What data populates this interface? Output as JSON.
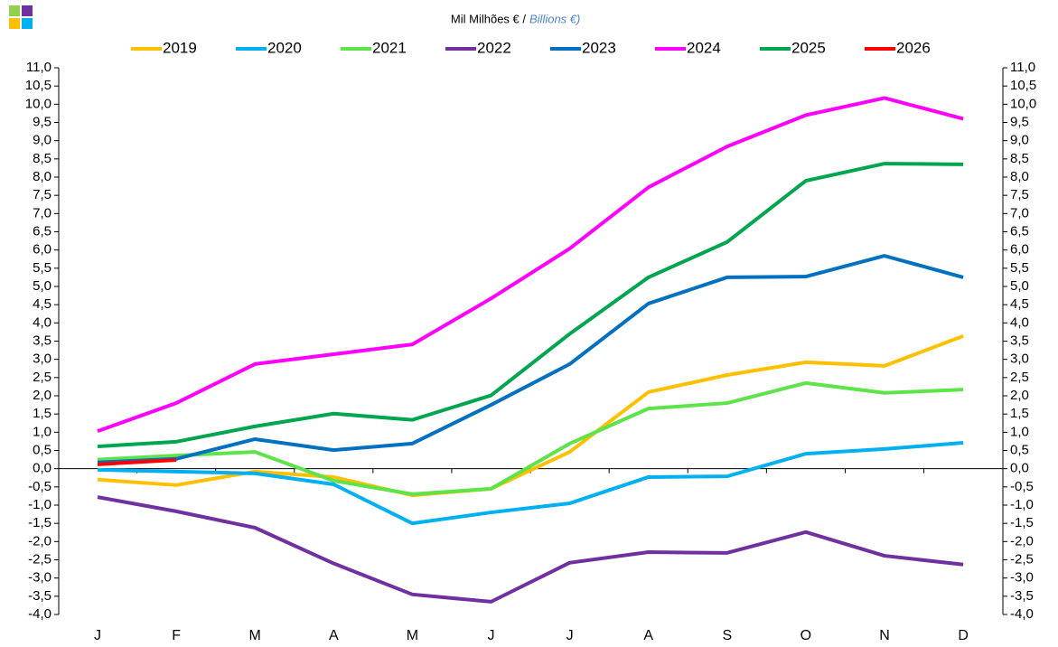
{
  "chart_data": {
    "type": "line",
    "title": "Mil Milhões € /",
    "subtitle": "Billions €)",
    "categories": [
      "J",
      "F",
      "M",
      "A",
      "M",
      "J",
      "J",
      "A",
      "S",
      "O",
      "N",
      "D"
    ],
    "ylim": [
      -4,
      11
    ],
    "yticks": [
      {
        "value": -4,
        "label": "-4,0"
      },
      {
        "value": -3.5,
        "label": "-3,5"
      },
      {
        "value": -3,
        "label": "-3,0"
      },
      {
        "value": -2.5,
        "label": "-2,5"
      },
      {
        "value": -2,
        "label": "-2,0"
      },
      {
        "value": -1.5,
        "label": "-1,5"
      },
      {
        "value": -1,
        "label": "-1,0"
      },
      {
        "value": -0.5,
        "label": "-0,5"
      },
      {
        "value": 0,
        "label": "0,0"
      },
      {
        "value": 0.5,
        "label": "0,5"
      },
      {
        "value": 1,
        "label": "1,0"
      },
      {
        "value": 1.5,
        "label": "1,5"
      },
      {
        "value": 2,
        "label": "2,0"
      },
      {
        "value": 2.5,
        "label": "2,5"
      },
      {
        "value": 3,
        "label": "3,0"
      },
      {
        "value": 3.5,
        "label": "3,5"
      },
      {
        "value": 4,
        "label": "4,0"
      },
      {
        "value": 4.5,
        "label": "4,5"
      },
      {
        "value": 5,
        "label": "5,0"
      },
      {
        "value": 5.5,
        "label": "5,5"
      },
      {
        "value": 6,
        "label": "6,0"
      },
      {
        "value": 6.5,
        "label": "6,5"
      },
      {
        "value": 7,
        "label": "7,0"
      },
      {
        "value": 7.5,
        "label": "7,5"
      },
      {
        "value": 8,
        "label": "8,0"
      },
      {
        "value": 8.5,
        "label": "8,5"
      },
      {
        "value": 9,
        "label": "9,0"
      },
      {
        "value": 9.5,
        "label": "9,5"
      },
      {
        "value": 10,
        "label": "10,0"
      },
      {
        "value": 10.5,
        "label": "10,5"
      },
      {
        "value": 11,
        "label": "11,0"
      }
    ],
    "grid": false,
    "legend": "top",
    "series": [
      {
        "name": "2019",
        "color": "#ffc000",
        "values": [
          -0.3,
          -0.45,
          -0.08,
          -0.23,
          -0.73,
          -0.55,
          0.46,
          2.1,
          2.57,
          2.92,
          2.82,
          3.64
        ]
      },
      {
        "name": "2020",
        "color": "#00b0f0",
        "values": [
          -0.03,
          -0.08,
          -0.13,
          -0.43,
          -1.5,
          -1.2,
          -0.95,
          -0.23,
          -0.21,
          0.41,
          0.54,
          0.71
        ]
      },
      {
        "name": "2021",
        "color": "#5ee34a",
        "values": [
          0.25,
          0.36,
          0.46,
          -0.33,
          -0.7,
          -0.55,
          0.69,
          1.65,
          1.8,
          2.35,
          2.08,
          2.17
        ]
      },
      {
        "name": "2022",
        "color": "#7030a0",
        "values": [
          -0.78,
          -1.17,
          -1.62,
          -2.6,
          -3.45,
          -3.65,
          -2.58,
          -2.29,
          -2.31,
          -1.74,
          -2.39,
          -2.63
        ]
      },
      {
        "name": "2023",
        "color": "#0070c0",
        "values": [
          0.17,
          0.27,
          0.81,
          0.51,
          0.69,
          1.75,
          2.87,
          4.53,
          5.25,
          5.27,
          5.84,
          5.25
        ]
      },
      {
        "name": "2024",
        "color": "#ff00ff",
        "values": [
          1.03,
          1.8,
          2.87,
          3.14,
          3.41,
          4.67,
          6.04,
          7.72,
          8.84,
          9.7,
          10.17,
          9.6
        ]
      },
      {
        "name": "2025",
        "color": "#00a550",
        "values": [
          0.61,
          0.74,
          1.16,
          1.51,
          1.34,
          2.01,
          3.7,
          5.25,
          6.22,
          7.9,
          8.37,
          8.35
        ]
      },
      {
        "name": "2026",
        "color": "#ff0000",
        "values": [
          0.12,
          0.24,
          null,
          null,
          null,
          null,
          null,
          null,
          null,
          null,
          null,
          null
        ]
      }
    ]
  }
}
